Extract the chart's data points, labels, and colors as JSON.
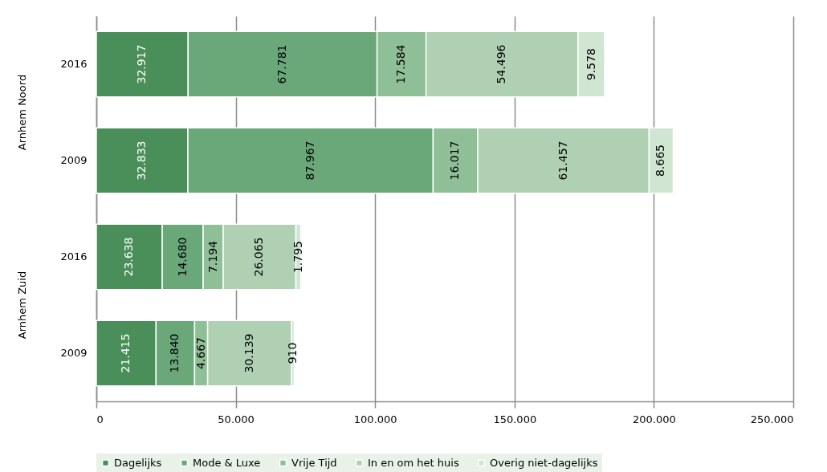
{
  "chart_data": {
    "type": "bar",
    "orientation": "horizontal",
    "stacked": true,
    "grid": "x",
    "legend": "bottom",
    "categories": [
      "2016",
      "2009",
      "2016",
      "2009"
    ],
    "annotations": [
      "Arnhem Noord",
      "Arnhem Zuid"
    ],
    "xlim": [
      0,
      250000
    ],
    "xticks": [
      {
        "value": 0,
        "label": "0"
      },
      {
        "value": 50000,
        "label": "50.000"
      },
      {
        "value": 100000,
        "label": "100.000"
      },
      {
        "value": 150000,
        "label": "150.000"
      },
      {
        "value": 200000,
        "label": "200.000"
      },
      {
        "value": 250000,
        "label": "250.000"
      }
    ],
    "series": [
      {
        "name": "Dagelijks",
        "color": "#4a8f5a",
        "values": [
          32917,
          32833,
          23638,
          21415
        ],
        "value_labels": [
          "32.917",
          "32.833",
          "23.638",
          "21.415"
        ]
      },
      {
        "name": "Mode & Luxe",
        "color": "#6aa87a",
        "values": [
          67781,
          87967,
          14680,
          13840
        ],
        "value_labels": [
          "67.781",
          "87.967",
          "14.680",
          "13.840"
        ]
      },
      {
        "name": "Vrije Tijd",
        "color": "#8fbf96",
        "values": [
          17584,
          16017,
          7194,
          4667
        ],
        "value_labels": [
          "17.584",
          "16.017",
          "7.194",
          "4.667"
        ]
      },
      {
        "name": "In en om het huis",
        "color": "#afd0b2",
        "values": [
          54496,
          61457,
          26065,
          30139
        ],
        "value_labels": [
          "54.496",
          "61.457",
          "26.065",
          "30.139"
        ]
      },
      {
        "name": "Overig niet-dagelijks",
        "color": "#d0e5d2",
        "values": [
          9578,
          8665,
          1795,
          910
        ],
        "value_labels": [
          "9.578",
          "8.665",
          "1.795",
          "910"
        ]
      }
    ]
  }
}
